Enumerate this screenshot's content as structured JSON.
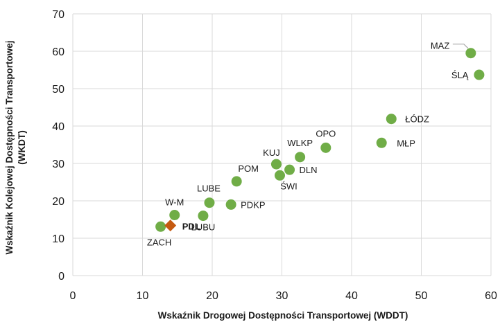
{
  "chart_data": {
    "type": "scatter",
    "title": "",
    "xlabel": "Wskaźnik Drogowej Dostępności Transportowej (WDDT)",
    "ylabel_line1": "Wskaźnik Kolejowej Dostępności Transportowej",
    "ylabel_line2": "(WKDT)",
    "xlim": [
      0,
      60
    ],
    "ylim": [
      0,
      70
    ],
    "xticks": [
      "0",
      "10",
      "20",
      "30",
      "40",
      "50",
      "60"
    ],
    "yticks": [
      "0",
      "10",
      "20",
      "30",
      "40",
      "50",
      "60",
      "70"
    ],
    "grid": true,
    "legend": "none",
    "colors": {
      "point": "#70AD47",
      "highlight": "#C55A11",
      "grid": "#d9d9d9",
      "leader": "#a6a6a6"
    },
    "points": [
      {
        "label": "MAZ",
        "x": 57.1,
        "y": 59.5,
        "highlight": false
      },
      {
        "label": "ŚLĄ",
        "x": 58.3,
        "y": 53.7,
        "highlight": false
      },
      {
        "label": "ŁÓDZ",
        "x": 45.7,
        "y": 41.9,
        "highlight": false
      },
      {
        "label": "MŁP",
        "x": 44.3,
        "y": 35.5,
        "highlight": false
      },
      {
        "label": "OPO",
        "x": 36.3,
        "y": 34.2,
        "highlight": false
      },
      {
        "label": "WLKP",
        "x": 32.6,
        "y": 31.7,
        "highlight": false
      },
      {
        "label": "KUJ",
        "x": 29.2,
        "y": 29.8,
        "highlight": false
      },
      {
        "label": "DLN",
        "x": 31.1,
        "y": 28.3,
        "highlight": false
      },
      {
        "label": "ŚWI",
        "x": 29.7,
        "y": 26.8,
        "highlight": false
      },
      {
        "label": "POM",
        "x": 23.5,
        "y": 25.2,
        "highlight": false
      },
      {
        "label": "PDKP",
        "x": 22.7,
        "y": 19.0,
        "highlight": false
      },
      {
        "label": "LUBE",
        "x": 19.6,
        "y": 19.5,
        "highlight": false
      },
      {
        "label": "LUBU",
        "x": 18.7,
        "y": 16.0,
        "highlight": false
      },
      {
        "label": "W-M",
        "x": 14.6,
        "y": 16.2,
        "highlight": false
      },
      {
        "label": "ZACH",
        "x": 12.6,
        "y": 13.1,
        "highlight": false
      },
      {
        "label": "PDL",
        "x": 14.0,
        "y": 13.4,
        "highlight": true
      }
    ]
  }
}
